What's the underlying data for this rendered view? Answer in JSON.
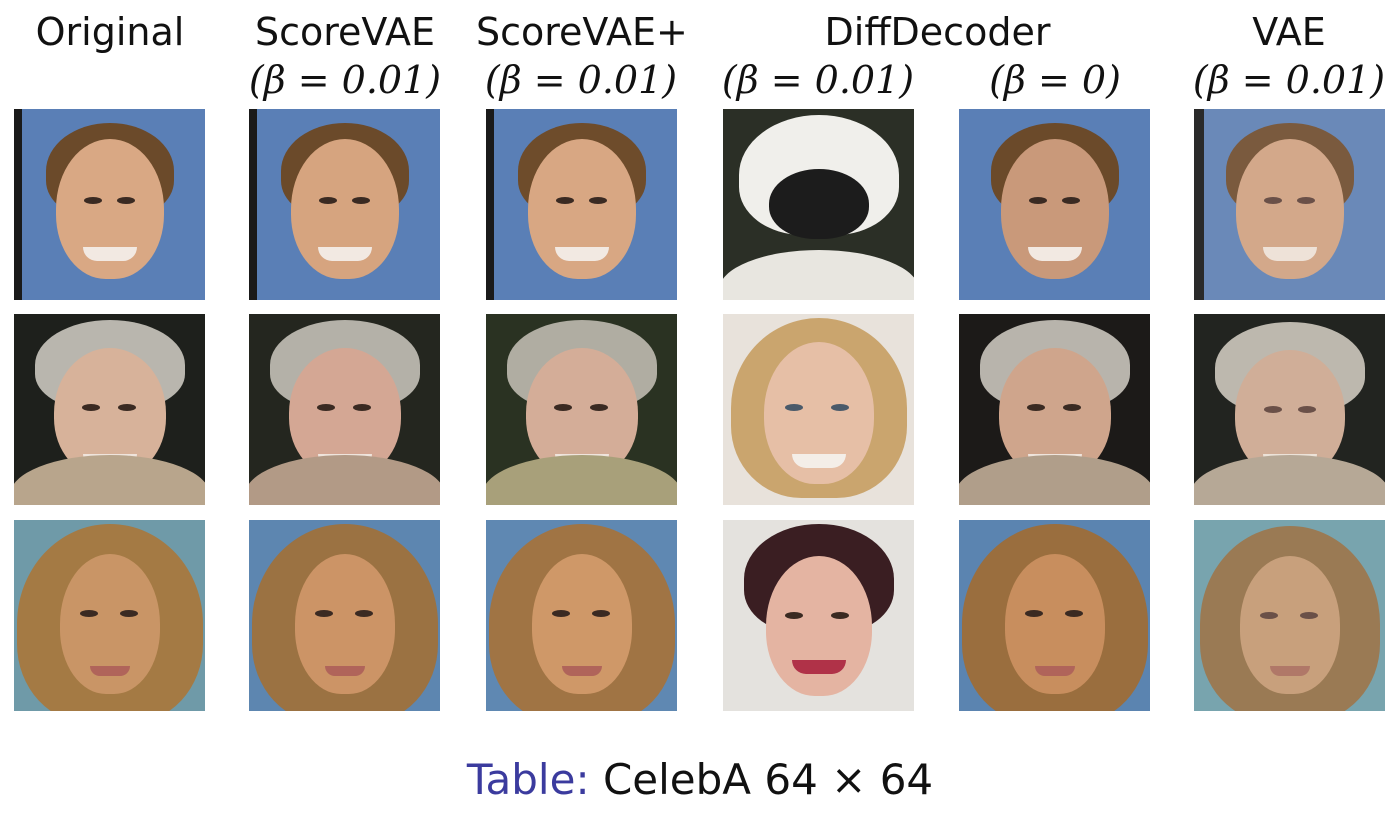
{
  "columns": [
    {
      "title": "Original",
      "param": ""
    },
    {
      "title": "ScoreVAE",
      "param": "(β = 0.01)"
    },
    {
      "title": "ScoreVAE+",
      "param": "(β = 0.01)"
    },
    {
      "title": "",
      "param": "(β = 0.01)"
    },
    {
      "title": "",
      "param": "(β = 0)"
    },
    {
      "title": "VAE",
      "param": "(β = 0.01)"
    }
  ],
  "group_header": "DiffDecoder",
  "caption": {
    "label": "Table:",
    "text": "CelebA 64 × 64"
  },
  "colors": {
    "caption_label": "#3b3b9e",
    "text": "#111111"
  }
}
